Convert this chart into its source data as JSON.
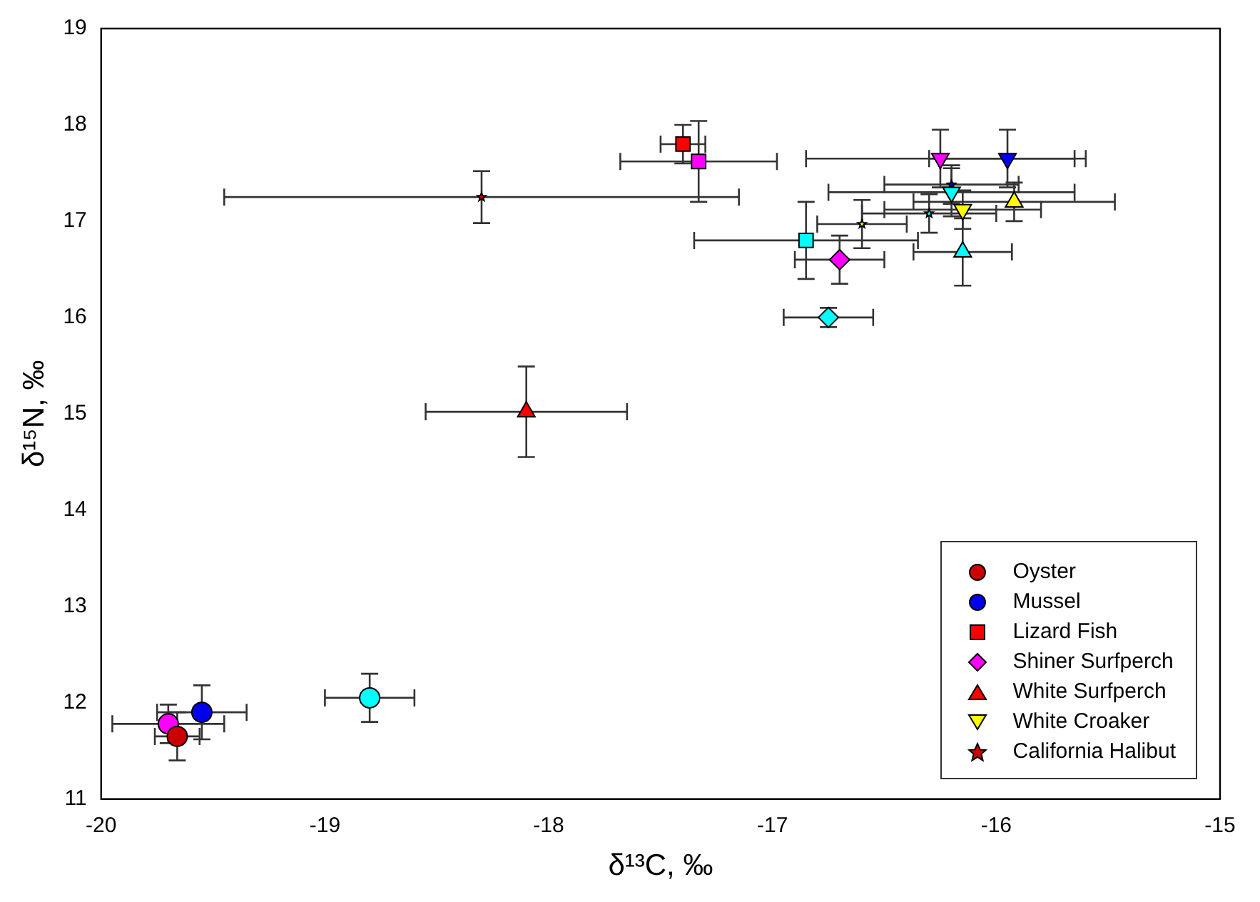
{
  "chart_data": {
    "type": "scatter",
    "xlabel": "δ¹³C, ‰",
    "ylabel": "δ¹⁵N, ‰",
    "xlim": [
      -20,
      -15
    ],
    "xticks": [
      -20,
      -19,
      -18,
      -17,
      -16,
      -15
    ],
    "ylim": [
      11,
      19
    ],
    "yticks": [
      11,
      12,
      13,
      14,
      15,
      16,
      17,
      18,
      19
    ],
    "grid": false,
    "legend": "bottom right",
    "series": [
      {
        "name": "Oyster",
        "color": "#cc0000",
        "marker": "circle",
        "x": [
          -19.66
        ],
        "values": [
          11.65
        ],
        "colors": [
          "#cc0000"
        ],
        "xerrors": [
          0.1
        ],
        "errors": [
          0.25
        ]
      },
      {
        "name": "Mussel",
        "color": "#0000ee",
        "marker": "circle",
        "x": [
          -19.55,
          -19.7,
          -18.8
        ],
        "values": [
          11.9,
          11.78,
          12.05
        ],
        "colors": [
          "#0000ee",
          "#ff00ff",
          "#00ffff"
        ],
        "xerrors": [
          0.2,
          0.25,
          0.2
        ],
        "errors": [
          0.28,
          0.2,
          0.25
        ]
      },
      {
        "name": "Lizard Fish",
        "color": "#ff0000",
        "marker": "square",
        "x": [
          -17.4,
          -17.33,
          -16.85
        ],
        "values": [
          17.8,
          17.62,
          16.8
        ],
        "colors": [
          "#ff0000",
          "#ff00ff",
          "#00ffff"
        ],
        "xerrors": [
          0.1,
          0.35,
          0.5
        ],
        "errors": [
          0.2,
          0.42,
          0.4
        ]
      },
      {
        "name": "Shiner Surfperch",
        "color": "#ff00ff",
        "marker": "diamond",
        "x": [
          -16.7,
          -16.75
        ],
        "values": [
          16.6,
          16.0
        ],
        "colors": [
          "#ff00ff",
          "#00ffff"
        ],
        "xerrors": [
          0.2,
          0.2
        ],
        "errors": [
          0.25,
          0.1
        ]
      },
      {
        "name": "White Surfperch",
        "color": "#ff0000",
        "marker": "triangle",
        "x": [
          -18.1,
          -16.15,
          -15.92
        ],
        "values": [
          15.02,
          16.68,
          17.2
        ],
        "colors": [
          "#ff0000",
          "#00ffff",
          "#ffff00"
        ],
        "xerrors": [
          0.45,
          0.22,
          0.45
        ],
        "errors": [
          0.47,
          0.35,
          0.2
        ]
      },
      {
        "name": "White Croaker",
        "color": "#ffff00",
        "marker": "triangle_down",
        "x": [
          -15.95,
          -16.25,
          -16.15,
          -16.2
        ],
        "values": [
          17.65,
          17.65,
          17.12,
          17.3
        ],
        "colors": [
          "#0000ee",
          "#ff00ff",
          "#ffff00",
          "#00ffff"
        ],
        "xerrors": [
          0.35,
          0.6,
          0.35,
          0.55
        ],
        "errors": [
          0.3,
          0.3,
          0.2,
          0.25
        ]
      },
      {
        "name": "California Halibut",
        "color": "#cc0000",
        "marker": "star",
        "x": [
          -18.3,
          -16.6,
          -16.3,
          -16.2
        ],
        "values": [
          17.25,
          16.97,
          17.08,
          17.38
        ],
        "colors": [
          "#cc0000",
          "#ffff00",
          "#00ffff",
          "#0000ee"
        ],
        "xerrors": [
          1.15,
          0.2,
          0.3,
          0.3
        ],
        "errors": [
          0.27,
          0.25,
          0.2,
          0.2
        ]
      }
    ]
  }
}
